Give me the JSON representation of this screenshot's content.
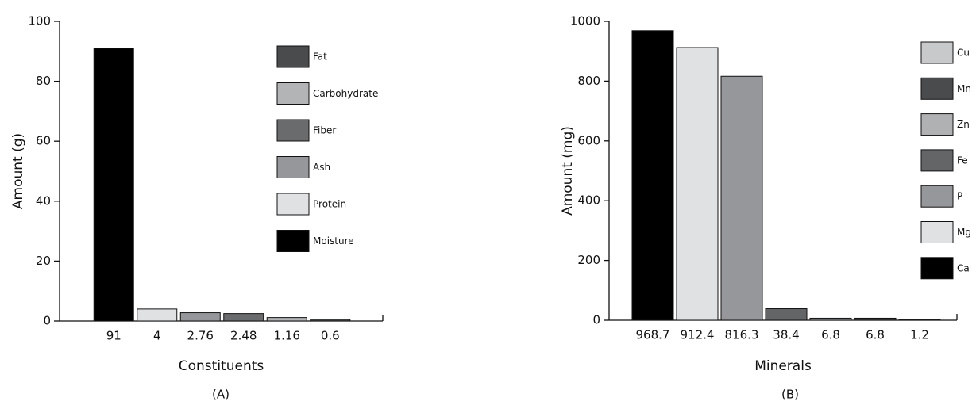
{
  "chart_data": [
    {
      "type": "bar",
      "x_label": "Constituents",
      "y_label": "Amount (g)",
      "panel_label": "(A)",
      "categories": [
        "91",
        "4",
        "2.76",
        "2.48",
        "1.16",
        "0.6"
      ],
      "values": [
        91,
        4,
        2.76,
        2.48,
        1.16,
        0.6
      ],
      "series_names": [
        "Moisture",
        "Protein",
        "Ash",
        "Fiber",
        "Carbohydrate",
        "Fat"
      ],
      "colors": [
        "#000000",
        "#e0e1e3",
        "#96979a",
        "#6a6b6d",
        "#b3b4b6",
        "#4a4b4d"
      ],
      "ylim": [
        0,
        100
      ],
      "yticks": [
        0,
        20,
        40,
        60,
        80,
        100
      ]
    },
    {
      "type": "bar",
      "x_label": "Minerals",
      "y_label": "Amount (mg)",
      "panel_label": "(B)",
      "categories": [
        "968.7",
        "912.4",
        "816.3",
        "38.4",
        "6.8",
        "6.8",
        "1.2"
      ],
      "values": [
        968.7,
        912.4,
        816.3,
        38.4,
        6.8,
        6.8,
        1.2
      ],
      "series_names": [
        "Ca",
        "Mg",
        "P",
        "Fe",
        "Zn",
        "Mn",
        "Cu"
      ],
      "colors": [
        "#000000",
        "#e0e1e3",
        "#96979a",
        "#646567",
        "#b0b1b3",
        "#4a4b4d",
        "#c8c9cb"
      ],
      "ylim": [
        0,
        1000
      ],
      "yticks": [
        0,
        200,
        400,
        600,
        800,
        1000
      ]
    }
  ]
}
